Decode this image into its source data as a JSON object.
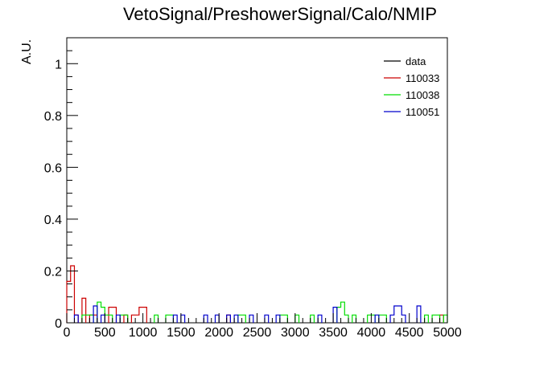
{
  "chart_data": {
    "type": "histogram",
    "title": "VetoSignal/PreshowerSignal/Calo/NMIP",
    "xlabel": "",
    "ylabel": "A.U.",
    "xlim": [
      0,
      5000
    ],
    "ylim": [
      0,
      1.1
    ],
    "bin_width": 50,
    "x_ticks": [
      0,
      500,
      1000,
      1500,
      2000,
      2500,
      3000,
      3500,
      4000,
      4500,
      5000
    ],
    "y_ticks": [
      0,
      0.2,
      0.4,
      0.6,
      0.8,
      1
    ],
    "y_tick_labels": [
      "0",
      "0.2",
      "0.4",
      "0.6",
      "0.8",
      "1"
    ],
    "grid": false,
    "legend_position": "top-right",
    "series": [
      {
        "name": "data",
        "color": "#000000",
        "values": []
      },
      {
        "name": "110033",
        "color": "#cc0000",
        "values": [
          [
            0,
            0.16
          ],
          [
            50,
            0.22
          ],
          [
            100,
            0.03
          ],
          [
            200,
            0.095
          ],
          [
            300,
            0.03
          ],
          [
            350,
            0.03
          ],
          [
            550,
            0.06
          ],
          [
            600,
            0.06
          ],
          [
            750,
            0.03
          ],
          [
            850,
            0.03
          ],
          [
            900,
            0.03
          ],
          [
            950,
            0.06
          ],
          [
            1000,
            0.06
          ],
          [
            2100,
            0.03
          ],
          [
            4900,
            0.03
          ]
        ]
      },
      {
        "name": "110038",
        "color": "#00dd00",
        "values": [
          [
            200,
            0.03
          ],
          [
            250,
            0.03
          ],
          [
            300,
            0.03
          ],
          [
            400,
            0.08
          ],
          [
            450,
            0.06
          ],
          [
            500,
            0.03
          ],
          [
            550,
            0.03
          ],
          [
            700,
            0.03
          ],
          [
            750,
            0.03
          ],
          [
            1150,
            0.03
          ],
          [
            1300,
            0.03
          ],
          [
            1350,
            0.03
          ],
          [
            2250,
            0.03
          ],
          [
            2300,
            0.03
          ],
          [
            2800,
            0.03
          ],
          [
            2850,
            0.03
          ],
          [
            3000,
            0.03
          ],
          [
            3200,
            0.03
          ],
          [
            3550,
            0.06
          ],
          [
            3600,
            0.08
          ],
          [
            3650,
            0.03
          ],
          [
            3750,
            0.03
          ],
          [
            3950,
            0.03
          ],
          [
            4000,
            0.03
          ],
          [
            4100,
            0.03
          ],
          [
            4150,
            0.03
          ],
          [
            4700,
            0.03
          ],
          [
            4800,
            0.03
          ],
          [
            4850,
            0.03
          ],
          [
            4950,
            0.03
          ]
        ]
      },
      {
        "name": "110051",
        "color": "#0000cc",
        "values": [
          [
            100,
            0.03
          ],
          [
            350,
            0.065
          ],
          [
            450,
            0.03
          ],
          [
            650,
            0.03
          ],
          [
            1400,
            0.03
          ],
          [
            1500,
            0.03
          ],
          [
            1800,
            0.03
          ],
          [
            1950,
            0.03
          ],
          [
            2100,
            0.03
          ],
          [
            2200,
            0.03
          ],
          [
            2400,
            0.03
          ],
          [
            2600,
            0.03
          ],
          [
            2750,
            0.03
          ],
          [
            3300,
            0.03
          ],
          [
            3500,
            0.06
          ],
          [
            4050,
            0.03
          ],
          [
            4250,
            0.03
          ],
          [
            4300,
            0.065
          ],
          [
            4350,
            0.065
          ],
          [
            4400,
            0.03
          ],
          [
            4600,
            0.065
          ]
        ]
      }
    ]
  }
}
